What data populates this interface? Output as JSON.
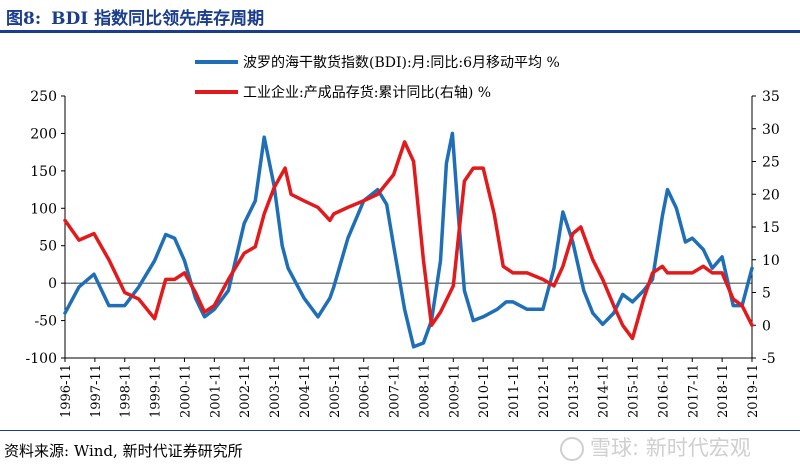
{
  "figure": {
    "label": "图8:",
    "title": "BDI 指数同比领先库存周期"
  },
  "source": "资料来源: Wind, 新时代证券研究所",
  "watermark": "雪球: 新时代宏观",
  "colors": {
    "bdi": "#1f6fb8",
    "inventory": "#e31a1c",
    "title": "#1a3d8f"
  },
  "chart_data": {
    "type": "line",
    "title": "BDI 指数同比领先库存周期",
    "xlabel": "",
    "ylabel_left": "",
    "ylabel_right": "",
    "x_range": [
      1996.83,
      2019.83
    ],
    "ylim_left": [
      -100,
      250
    ],
    "ylim_right": [
      -5,
      35
    ],
    "y_ticks_left": [
      "250",
      "200",
      "150",
      "100",
      "50",
      "0",
      "-50",
      "-100"
    ],
    "y_tick_values_left": [
      250,
      200,
      150,
      100,
      50,
      0,
      -50,
      -100
    ],
    "y_ticks_right": [
      "35",
      "30",
      "25",
      "20",
      "15",
      "10",
      "5",
      "0",
      "-5"
    ],
    "y_tick_values_right": [
      35,
      30,
      25,
      20,
      15,
      10,
      5,
      0,
      -5
    ],
    "x_ticks": [
      "1996-11",
      "1997-11",
      "1998-11",
      "1999-11",
      "2000-11",
      "2001-11",
      "2002-11",
      "2003-11",
      "2004-11",
      "2005-11",
      "2006-11",
      "2007-11",
      "2008-11",
      "2009-11",
      "2010-11",
      "2011-11",
      "2012-11",
      "2013-11",
      "2014-11",
      "2015-11",
      "2016-11",
      "2017-11",
      "2018-11",
      "2019-11"
    ],
    "legend": [
      "波罗的海干散货指数(BDI):月:同比:6月移动平均 %",
      "工业企业:产成品存货:累计同比(右轴) %"
    ],
    "series": [
      {
        "name": "波罗的海干散货指数(BDI):月:同比:6月移动平均 %",
        "axis": "left",
        "x": [
          1996.83,
          1997.3,
          1997.8,
          1998.3,
          1998.83,
          1999.3,
          1999.83,
          2000.2,
          2000.5,
          2000.83,
          2001.2,
          2001.5,
          2001.83,
          2002.3,
          2002.83,
          2003.2,
          2003.5,
          2003.83,
          2004.1,
          2004.3,
          2004.83,
          2005.3,
          2005.7,
          2005.83,
          2006.3,
          2006.83,
          2007.3,
          2007.6,
          2007.83,
          2008.2,
          2008.5,
          2008.83,
          2009.1,
          2009.4,
          2009.6,
          2009.8,
          2010.0,
          2010.2,
          2010.5,
          2010.83,
          2011.3,
          2011.6,
          2011.83,
          2012.3,
          2012.83,
          2013.2,
          2013.5,
          2013.83,
          2014.2,
          2014.5,
          2014.83,
          2015.2,
          2015.5,
          2015.83,
          2016.2,
          2016.5,
          2016.83,
          2017.0,
          2017.3,
          2017.6,
          2017.83,
          2018.2,
          2018.5,
          2018.83,
          2019.2,
          2019.5,
          2019.83
        ],
        "values": [
          -40,
          -5,
          12,
          -30,
          -30,
          -5,
          30,
          65,
          60,
          30,
          -20,
          -45,
          -35,
          -10,
          80,
          110,
          195,
          130,
          50,
          20,
          -20,
          -45,
          -20,
          -5,
          60,
          110,
          125,
          105,
          50,
          -35,
          -85,
          -80,
          -50,
          30,
          160,
          200,
          90,
          -10,
          -50,
          -45,
          -35,
          -25,
          -25,
          -35,
          -35,
          20,
          95,
          55,
          -10,
          -40,
          -55,
          -40,
          -15,
          -25,
          -10,
          5,
          90,
          125,
          100,
          55,
          60,
          45,
          20,
          35,
          -30,
          -30,
          20
        ]
      },
      {
        "name": "工业企业:产成品存货:累计同比(右轴) %",
        "axis": "right",
        "x": [
          1996.83,
          1997.3,
          1997.8,
          1998.3,
          1998.83,
          1999.3,
          1999.83,
          2000.2,
          2000.5,
          2000.83,
          2001.2,
          2001.5,
          2001.83,
          2002.3,
          2002.83,
          2003.2,
          2003.5,
          2003.83,
          2004.2,
          2004.4,
          2004.83,
          2005.3,
          2005.7,
          2005.83,
          2006.3,
          2006.83,
          2007.3,
          2007.83,
          2008.2,
          2008.5,
          2008.83,
          2009.1,
          2009.4,
          2009.83,
          2010.2,
          2010.5,
          2010.83,
          2011.2,
          2011.5,
          2011.83,
          2012.3,
          2012.83,
          2013.2,
          2013.5,
          2013.83,
          2014.1,
          2014.5,
          2014.83,
          2015.2,
          2015.5,
          2015.83,
          2016.2,
          2016.5,
          2016.83,
          2017.0,
          2017.3,
          2017.6,
          2017.83,
          2018.2,
          2018.5,
          2018.83,
          2019.2,
          2019.5,
          2019.83
        ],
        "values": [
          16,
          13,
          14,
          10,
          5,
          4,
          1,
          7,
          7,
          8,
          5,
          2,
          3,
          7,
          11,
          12,
          17,
          21,
          24,
          20,
          19,
          18,
          16,
          17,
          18,
          19,
          20,
          23,
          28,
          25,
          10,
          0,
          2,
          6,
          22,
          24,
          24,
          17,
          9,
          8,
          8,
          7,
          6,
          9,
          14,
          15,
          10,
          7,
          3,
          0,
          -2,
          4,
          8,
          9,
          8,
          8,
          8,
          8,
          9,
          8,
          8,
          4,
          3,
          0
        ]
      }
    ]
  }
}
